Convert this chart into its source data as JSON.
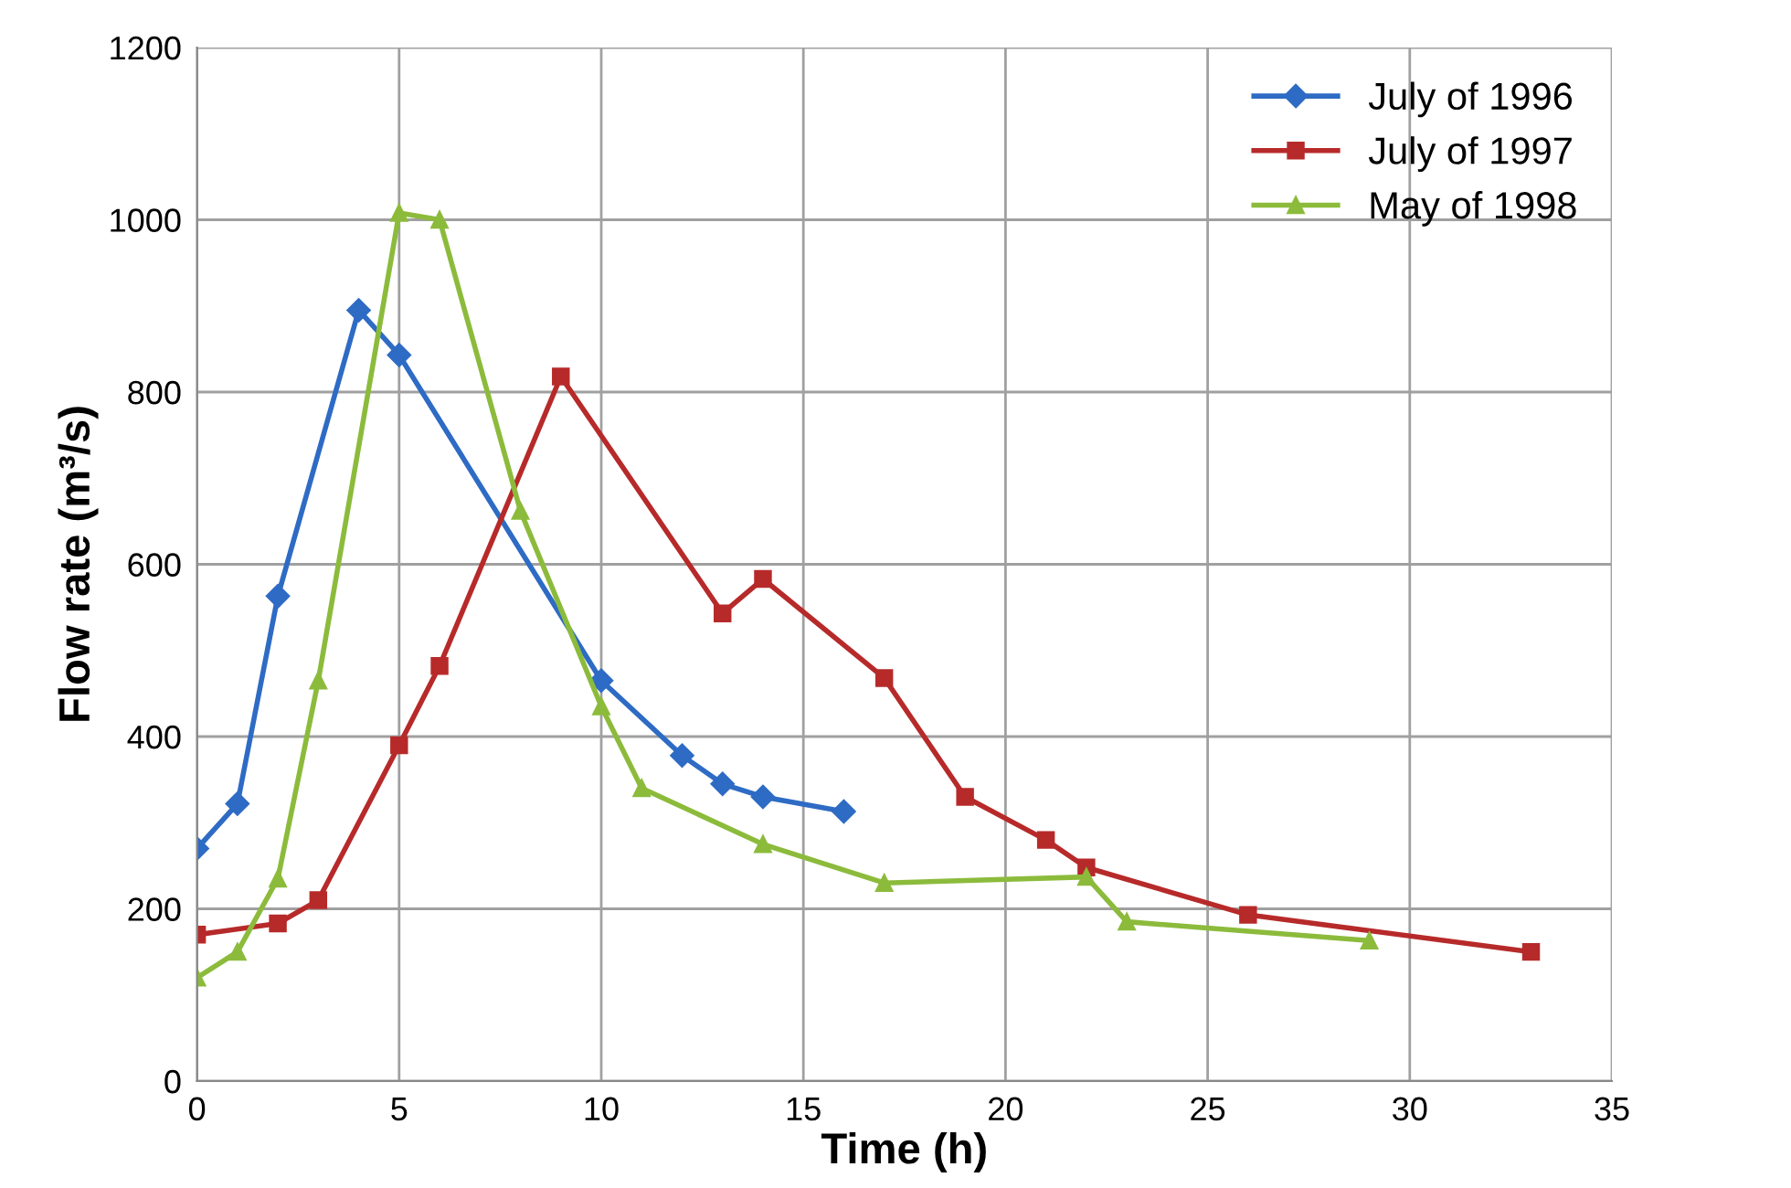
{
  "chart_data": {
    "type": "line",
    "xlabel": "Time (h)",
    "ylabel": "Flow rate (m³/s)",
    "xlim": [
      0,
      35
    ],
    "xticks": [
      0,
      5,
      10,
      15,
      20,
      25,
      30,
      35
    ],
    "ylim": [
      0,
      1200
    ],
    "yticks": [
      0,
      200,
      400,
      600,
      800,
      1000,
      1200
    ],
    "grid": true,
    "legend": "top right",
    "series": [
      {
        "name": "July of 1996",
        "color": "#2e6bc4",
        "marker": "diamond",
        "x": [
          0,
          1,
          2,
          4,
          5,
          10,
          12,
          13,
          14,
          16
        ],
        "values": [
          270,
          322,
          563,
          895,
          843,
          465,
          378,
          345,
          330,
          313
        ]
      },
      {
        "name": "July of 1997",
        "color": "#b72a2a",
        "marker": "square",
        "x": [
          0,
          2,
          3,
          5,
          6,
          9,
          13,
          14,
          17,
          19,
          21,
          22,
          26,
          33
        ],
        "values": [
          170,
          183,
          210,
          390,
          482,
          818,
          543,
          583,
          468,
          330,
          280,
          248,
          193,
          150
        ]
      },
      {
        "name": "May of 1998",
        "color": "#8cbb3c",
        "marker": "triangle",
        "x": [
          0,
          1,
          2,
          3,
          5,
          6,
          8,
          10,
          11,
          14,
          17,
          22,
          23,
          29
        ],
        "values": [
          120,
          150,
          235,
          465,
          1008,
          1000,
          662,
          435,
          340,
          275,
          230,
          237,
          185,
          163
        ]
      }
    ]
  }
}
